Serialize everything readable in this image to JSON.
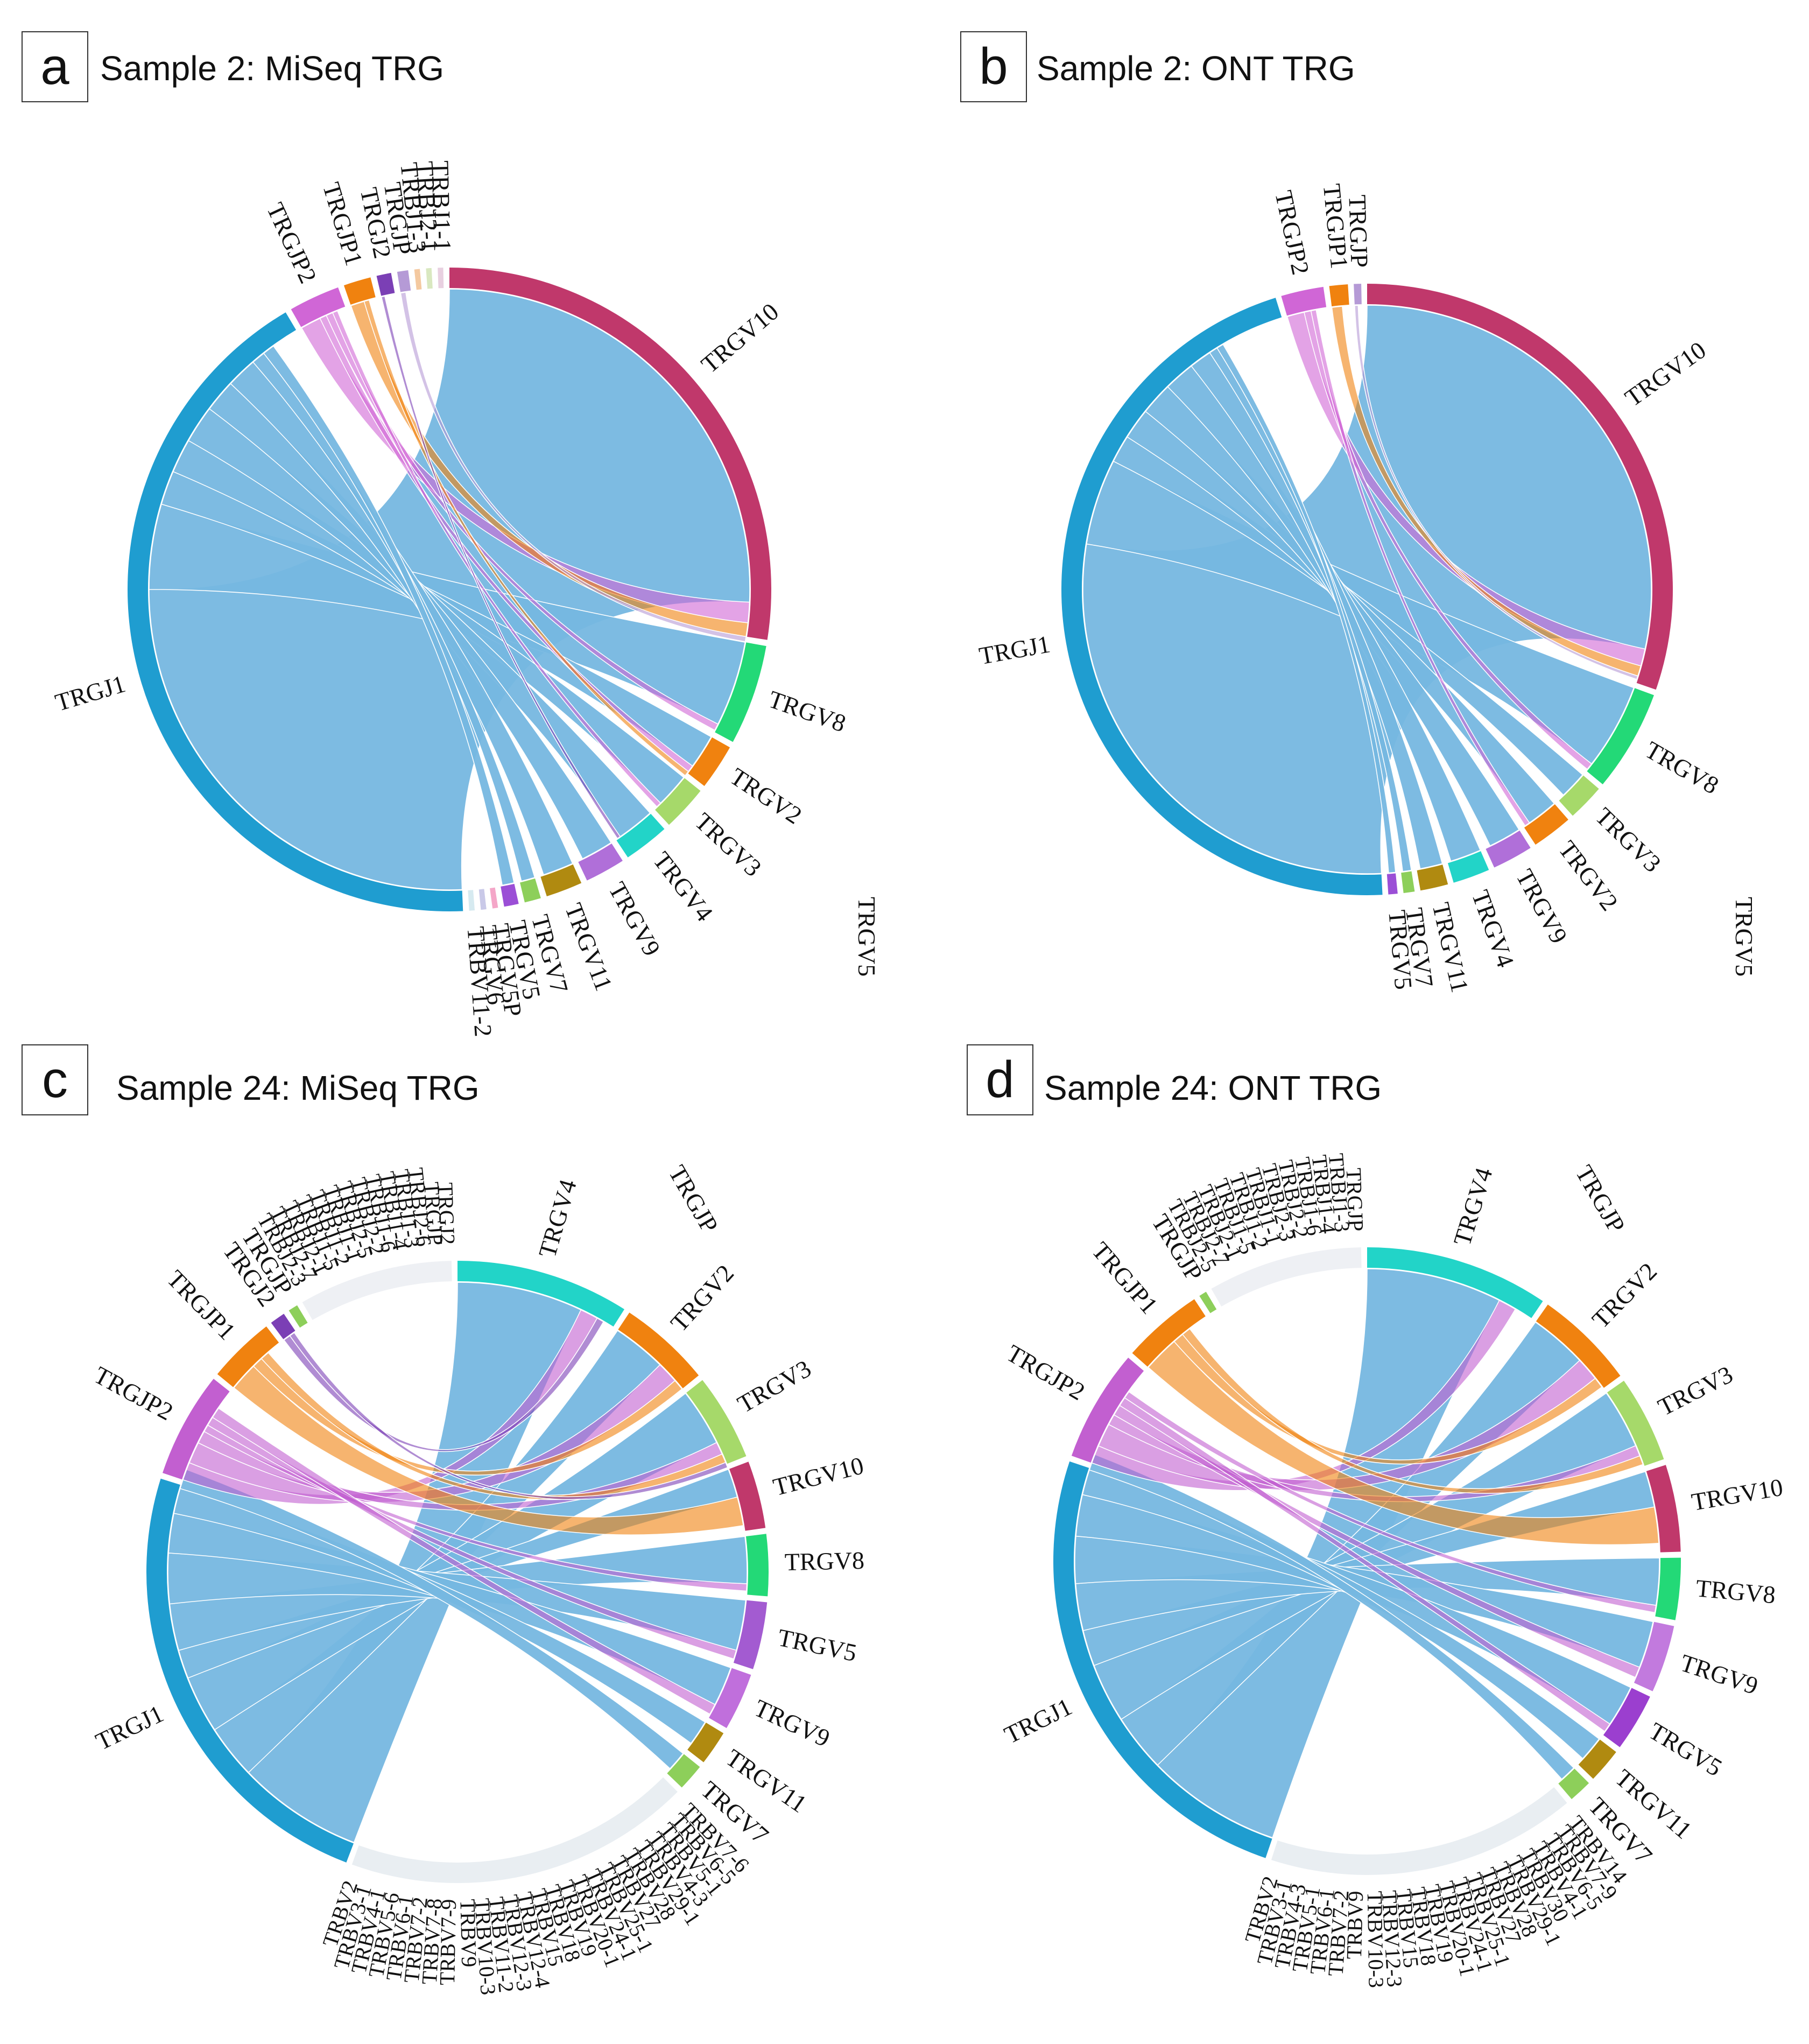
{
  "chart_data": [
    {
      "type": "chord",
      "panel": "a",
      "title": "Sample 2: MiSeq TRG",
      "segments": [
        {
          "name": "TRGV10",
          "value": 30.0,
          "color": "#c0386b"
        },
        {
          "name": "TRGV8",
          "value": 5.5,
          "color": "#23d977"
        },
        {
          "name": "TRGV2",
          "value": 2.5,
          "color": "#f0820f"
        },
        {
          "name": "TRGV3",
          "value": 2.5,
          "color": "#a6d96a"
        },
        {
          "name": "TRGV4",
          "value": 2.5,
          "color": "#22d4c8"
        },
        {
          "name": "TRGV9",
          "value": 2.2,
          "color": "#b06fd9"
        },
        {
          "name": "TRGV11",
          "value": 2.0,
          "color": "#b08a10"
        },
        {
          "name": "TRGV7",
          "value": 0.9,
          "color": "#8dcf5a"
        },
        {
          "name": "TRGV5",
          "value": 0.8,
          "color": "#9b4fd6"
        },
        {
          "name": "TRGV5P",
          "value": 0.3,
          "color": "#f4a6c8"
        },
        {
          "name": "TRGV6",
          "value": 0.3,
          "color": "#c9c9e8"
        },
        {
          "name": "TRBV11-2",
          "value": 0.3,
          "color": "#d6eaf0"
        },
        {
          "name": "TRGJ1",
          "value": 46.0,
          "color": "#1f9dd0"
        },
        {
          "name": "TRGJP2",
          "value": 2.8,
          "color": "#d066d6"
        },
        {
          "name": "TRGJP1",
          "value": 1.5,
          "color": "#f0820f"
        },
        {
          "name": "TRGJ2",
          "value": 0.8,
          "color": "#7b3fb5"
        },
        {
          "name": "TRGJP",
          "value": 0.6,
          "color": "#b59ad6"
        },
        {
          "name": "TRBJ1-3",
          "value": 0.3,
          "color": "#f4c9a0"
        },
        {
          "name": "TRBJ2-1",
          "value": 0.3,
          "color": "#d9e8c0"
        },
        {
          "name": "TRBJ1-1",
          "value": 0.3,
          "color": "#e8d0e0"
        }
      ],
      "stray_label": "TRGV5",
      "links": [
        {
          "from": "TRGJ1",
          "to": "TRGV10",
          "value": 28.0
        },
        {
          "from": "TRGJ1",
          "to": "TRGV8",
          "value": 5.0
        },
        {
          "from": "TRGJ1",
          "to": "TRGV2",
          "value": 2.0
        },
        {
          "from": "TRGJ1",
          "to": "TRGV3",
          "value": 2.0
        },
        {
          "from": "TRGJ1",
          "to": "TRGV4",
          "value": 2.2
        },
        {
          "from": "TRGJ1",
          "to": "TRGV9",
          "value": 1.9
        },
        {
          "from": "TRGJ1",
          "to": "TRGV11",
          "value": 1.8
        },
        {
          "from": "TRGJ1",
          "to": "TRGV7",
          "value": 0.8
        },
        {
          "from": "TRGJ1",
          "to": "TRGV5",
          "value": 0.7
        },
        {
          "from": "TRGJP2",
          "to": "TRGV10",
          "value": 1.2
        },
        {
          "from": "TRGJP2",
          "to": "TRGV2",
          "value": 0.4
        },
        {
          "from": "TRGJP2",
          "to": "TRGV8",
          "value": 0.4
        },
        {
          "from": "TRGJP2",
          "to": "TRGV3",
          "value": 0.3
        },
        {
          "from": "TRGJP1",
          "to": "TRGV10",
          "value": 0.8
        },
        {
          "from": "TRGJP1",
          "to": "TRGV2",
          "value": 0.3
        },
        {
          "from": "TRGJ2",
          "to": "TRGV4",
          "value": 0.2
        },
        {
          "from": "TRGJP",
          "to": "TRGV10",
          "value": 0.3
        }
      ]
    },
    {
      "type": "chord",
      "panel": "b",
      "title": "Sample 2: ONT TRG",
      "segments": [
        {
          "name": "TRGV10",
          "value": 31.0,
          "color": "#c0386b"
        },
        {
          "name": "TRGV8",
          "value": 5.5,
          "color": "#23d977"
        },
        {
          "name": "TRGV3",
          "value": 2.0,
          "color": "#a6d96a"
        },
        {
          "name": "TRGV2",
          "value": 2.2,
          "color": "#f0820f"
        },
        {
          "name": "TRGV9",
          "value": 2.2,
          "color": "#b06fd9"
        },
        {
          "name": "TRGV4",
          "value": 2.0,
          "color": "#22d4c8"
        },
        {
          "name": "TRGV11",
          "value": 1.5,
          "color": "#b08a10"
        },
        {
          "name": "TRGV7",
          "value": 0.6,
          "color": "#8dcf5a"
        },
        {
          "name": "TRGV5",
          "value": 0.5,
          "color": "#9b4fd6"
        },
        {
          "name": "TRGJ1",
          "value": 47.0,
          "color": "#1f9dd0"
        },
        {
          "name": "TRGJP2",
          "value": 2.3,
          "color": "#d066d6"
        },
        {
          "name": "TRGJP1",
          "value": 1.0,
          "color": "#f0820f"
        },
        {
          "name": "TRGJP",
          "value": 0.4,
          "color": "#b59ad6"
        }
      ],
      "stray_label": "TRGV5",
      "links": [
        {
          "from": "TRGJ1",
          "to": "TRGV10",
          "value": 29.0
        },
        {
          "from": "TRGJ1",
          "to": "TRGV8",
          "value": 5.0
        },
        {
          "from": "TRGJ1",
          "to": "TRGV3",
          "value": 1.6
        },
        {
          "from": "TRGJ1",
          "to": "TRGV2",
          "value": 1.8
        },
        {
          "from": "TRGJ1",
          "to": "TRGV9",
          "value": 1.9
        },
        {
          "from": "TRGJ1",
          "to": "TRGV4",
          "value": 1.8
        },
        {
          "from": "TRGJ1",
          "to": "TRGV11",
          "value": 1.3
        },
        {
          "from": "TRGJ1",
          "to": "TRGV7",
          "value": 0.5
        },
        {
          "from": "TRGJ1",
          "to": "TRGV5",
          "value": 0.4
        },
        {
          "from": "TRGJP2",
          "to": "TRGV10",
          "value": 1.0
        },
        {
          "from": "TRGJP2",
          "to": "TRGV8",
          "value": 0.4
        },
        {
          "from": "TRGJP2",
          "to": "TRGV2",
          "value": 0.3
        },
        {
          "from": "TRGJP1",
          "to": "TRGV10",
          "value": 0.6
        },
        {
          "from": "TRGJP",
          "to": "TRGV10",
          "value": 0.2
        }
      ]
    },
    {
      "type": "chord",
      "panel": "c",
      "title": "Sample 24: MiSeq TRG",
      "segments": [
        {
          "name": "TRGV4",
          "value": 9.0,
          "color": "#22d4c8"
        },
        {
          "name": "TRGV2",
          "value": 4.8,
          "color": "#f0820f"
        },
        {
          "name": "TRGV3",
          "value": 4.5,
          "color": "#a6d96a"
        },
        {
          "name": "TRGV10",
          "value": 3.5,
          "color": "#c0386b"
        },
        {
          "name": "TRGV8",
          "value": 3.2,
          "color": "#23d977"
        },
        {
          "name": "TRGV5",
          "value": 3.5,
          "color": "#a35bd1"
        },
        {
          "name": "TRGV9",
          "value": 3.0,
          "color": "#c06fdc"
        },
        {
          "name": "TRGV11",
          "value": 1.8,
          "color": "#b08a10"
        },
        {
          "name": "TRGV7",
          "value": 1.4,
          "color": "#8dcf5a"
        },
        {
          "name": "TRBV",
          "value": 18.0,
          "color": "#e9eef2"
        },
        {
          "name": "TRGJ1",
          "value": 24.0,
          "color": "#1f9dd0"
        },
        {
          "name": "TRGJP2",
          "value": 5.5,
          "color": "#c25fd0"
        },
        {
          "name": "TRGJP1",
          "value": 3.5,
          "color": "#f0820f"
        },
        {
          "name": "TRGJ2",
          "value": 0.8,
          "color": "#7b3fb5"
        },
        {
          "name": "TRGJP",
          "value": 0.5,
          "color": "#8dcf5a"
        },
        {
          "name": "TRBJ",
          "value": 8.0,
          "color": "#eef0f4"
        }
      ],
      "stray_label": "TRGJP",
      "trbv_labels": [
        "TRBV7-6",
        "TRBV6-5",
        "TRBV5-1",
        "TRBV4-3",
        "TRBV29-1",
        "TRBV28",
        "TRBV27",
        "TRBV25-1",
        "TRBV24-1",
        "TRBV20-1",
        "TRBV19",
        "TRBV18",
        "TRBV15",
        "TRBV12-4",
        "TRBV12-3",
        "TRBV11-2",
        "TRBV10-3",
        "TRBV9",
        "TRBV7-9",
        "TRBV7-8",
        "TRBV7-2",
        "TRBV6-1",
        "TRBV5-6",
        "TRBV4-1",
        "TRBV3-1",
        "TRBV2"
      ],
      "trbj_labels": [
        "TRBJ2-3",
        "TRBJ2-7",
        "TRBJ2-1",
        "TRBJ1-5",
        "TRBJ1-2",
        "TRBJ1-1",
        "TRBJ2-5",
        "TRBJ2-2",
        "TRBJ1-6",
        "TRBJ1-4",
        "TRBJ1-3",
        "TRBJ2-6",
        "TRGJP",
        "TRGJ2"
      ],
      "links": [
        {
          "from": "TRGJ1",
          "to": "TRGV4",
          "value": 7.0
        },
        {
          "from": "TRGJ1",
          "to": "TRGV2",
          "value": 3.0
        },
        {
          "from": "TRGJ1",
          "to": "TRGV3",
          "value": 3.2
        },
        {
          "from": "TRGJ1",
          "to": "TRGV10",
          "value": 1.6
        },
        {
          "from": "TRGJ1",
          "to": "TRGV8",
          "value": 2.6
        },
        {
          "from": "TRGJ1",
          "to": "TRGV5",
          "value": 2.8
        },
        {
          "from": "TRGJ1",
          "to": "TRGV9",
          "value": 2.2
        },
        {
          "from": "TRGJ1",
          "to": "TRGV11",
          "value": 1.4
        },
        {
          "from": "TRGJ1",
          "to": "TRGV7",
          "value": 1.1
        },
        {
          "from": "TRGJP2",
          "to": "TRGV4",
          "value": 1.0
        },
        {
          "from": "TRGJP2",
          "to": "TRGV2",
          "value": 1.2
        },
        {
          "from": "TRGJP2",
          "to": "TRGV3",
          "value": 0.7
        },
        {
          "from": "TRGJP2",
          "to": "TRGV8",
          "value": 0.4
        },
        {
          "from": "TRGJP2",
          "to": "TRGV5",
          "value": 0.5
        },
        {
          "from": "TRGJP2",
          "to": "TRGV9",
          "value": 0.6
        },
        {
          "from": "TRGJP1",
          "to": "TRGV10",
          "value": 1.6
        },
        {
          "from": "TRGJP1",
          "to": "TRGV2",
          "value": 0.6
        },
        {
          "from": "TRGJP1",
          "to": "TRGV3",
          "value": 0.5
        },
        {
          "from": "TRGJ2",
          "to": "TRGV4",
          "value": 0.4
        },
        {
          "from": "TRGJ2",
          "to": "TRGV3",
          "value": 0.3
        }
      ]
    },
    {
      "type": "chord",
      "panel": "d",
      "title": "Sample 24: ONT TRG",
      "segments": [
        {
          "name": "TRGV4",
          "value": 9.5,
          "color": "#22d4c8"
        },
        {
          "name": "TRGV2",
          "value": 5.2,
          "color": "#f0820f"
        },
        {
          "name": "TRGV3",
          "value": 4.5,
          "color": "#a6d96a"
        },
        {
          "name": "TRGV10",
          "value": 4.5,
          "color": "#c0386b"
        },
        {
          "name": "TRGV8",
          "value": 3.2,
          "color": "#23d977"
        },
        {
          "name": "TRGV9",
          "value": 3.5,
          "color": "#c27ade"
        },
        {
          "name": "TRGV5",
          "value": 3.0,
          "color": "#9b3fcf"
        },
        {
          "name": "TRGV11",
          "value": 1.8,
          "color": "#b08a10"
        },
        {
          "name": "TRGV7",
          "value": 1.2,
          "color": "#8dcf5a"
        },
        {
          "name": "TRBV",
          "value": 16.0,
          "color": "#e9eef2"
        },
        {
          "name": "TRGJ1",
          "value": 25.0,
          "color": "#1f9dd0"
        },
        {
          "name": "TRGJP2",
          "value": 5.8,
          "color": "#c25fd0"
        },
        {
          "name": "TRGJP1",
          "value": 4.2,
          "color": "#f0820f"
        },
        {
          "name": "TRGJP",
          "value": 0.4,
          "color": "#8dcf5a"
        },
        {
          "name": "TRBJ",
          "value": 8.0,
          "color": "#eef0f4"
        }
      ],
      "stray_label": "TRGJP",
      "trbv_labels": [
        "TRBV14",
        "TRBV7-9",
        "TRBV6-5",
        "TRBV4-1",
        "TRBV30",
        "TRBV29-1",
        "TRBV28",
        "TRBV27",
        "TRBV25-1",
        "TRBV24-1",
        "TRBV20-1",
        "TRBV19",
        "TRBV18",
        "TRBV15",
        "TRBV12-3",
        "TRBV10-3",
        "TRBV9",
        "TRBV7-2",
        "TRBV6-1",
        "TRBV5-1",
        "TRBV4-3",
        "TRBV3-1",
        "TRBV2"
      ],
      "trbj_labels": [
        "TRBJ2-5",
        "TRBJ2-7",
        "TRBJ2-1",
        "TRBJ1-5",
        "TRBJ1-2",
        "TRBJ1-1",
        "TRBJ2-3",
        "TRBJ2-2",
        "TRBJ1-6",
        "TRBJ1-4",
        "TRBJ1-3",
        "TRGJP"
      ],
      "links": [
        {
          "from": "TRGJ1",
          "to": "TRGV4",
          "value": 7.5
        },
        {
          "from": "TRGJ1",
          "to": "TRGV2",
          "value": 3.2
        },
        {
          "from": "TRGJ1",
          "to": "TRGV3",
          "value": 3.3
        },
        {
          "from": "TRGJ1",
          "to": "TRGV10",
          "value": 2.0
        },
        {
          "from": "TRGJ1",
          "to": "TRGV8",
          "value": 2.6
        },
        {
          "from": "TRGJ1",
          "to": "TRGV9",
          "value": 2.6
        },
        {
          "from": "TRGJ1",
          "to": "TRGV5",
          "value": 2.3
        },
        {
          "from": "TRGJ1",
          "to": "TRGV11",
          "value": 1.4
        },
        {
          "from": "TRGJ1",
          "to": "TRGV7",
          "value": 0.9
        },
        {
          "from": "TRGJP2",
          "to": "TRGV4",
          "value": 1.0
        },
        {
          "from": "TRGJP2",
          "to": "TRGV2",
          "value": 1.3
        },
        {
          "from": "TRGJP2",
          "to": "TRGV3",
          "value": 0.6
        },
        {
          "from": "TRGJP2",
          "to": "TRGV9",
          "value": 0.6
        },
        {
          "from": "TRGJP2",
          "to": "TRGV5",
          "value": 0.5
        },
        {
          "from": "TRGJP2",
          "to": "TRGV8",
          "value": 0.4
        },
        {
          "from": "TRGJP1",
          "to": "TRGV10",
          "value": 2.0
        },
        {
          "from": "TRGJP1",
          "to": "TRGV2",
          "value": 0.6
        },
        {
          "from": "TRGJP1",
          "to": "TRGV3",
          "value": 0.5
        }
      ]
    }
  ]
}
